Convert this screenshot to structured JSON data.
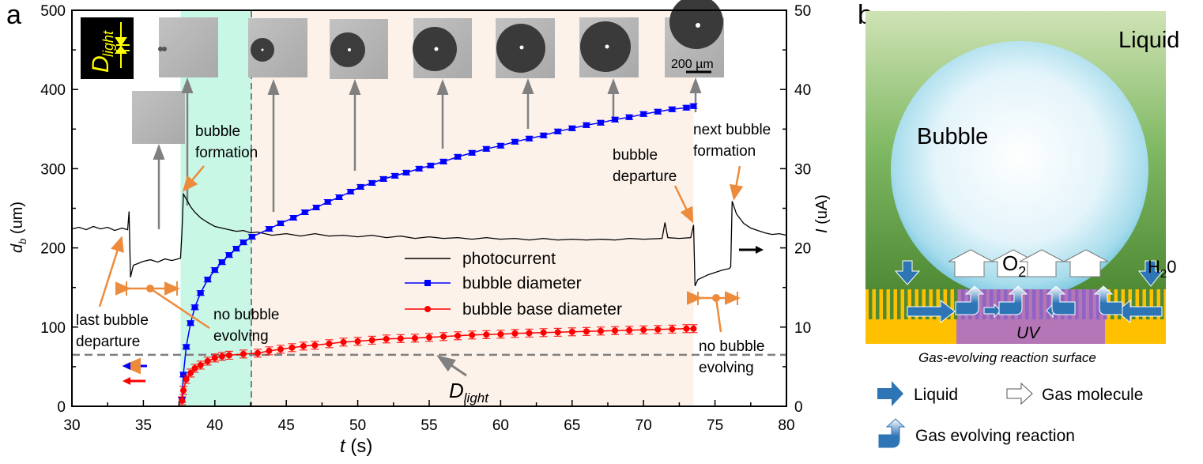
{
  "panel_labels": {
    "a": "a",
    "b": "b"
  },
  "chart_data": {
    "type": "line",
    "xlabel_var": "t",
    "xlabel_unit": " (s)",
    "ylabel_left_var": "d",
    "ylabel_left_sub": "b",
    "ylabel_left_unit": " (um)",
    "ylabel_right_var": "I",
    "ylabel_right_unit": " (uA)",
    "xlim": [
      30,
      80
    ],
    "ylim_left": [
      0,
      500
    ],
    "ylim_right": [
      0,
      50
    ],
    "x_ticks": [
      "30",
      "35",
      "40",
      "45",
      "50",
      "55",
      "60",
      "65",
      "70",
      "75",
      "80"
    ],
    "y_ticks_left": [
      "0",
      "100",
      "200",
      "300",
      "400",
      "500"
    ],
    "y_ticks_right": [
      "0",
      "10",
      "20",
      "30",
      "40",
      "50"
    ],
    "d_light_um": 65,
    "d_light_label": "D",
    "d_light_sub": "light",
    "regions": [
      {
        "name": "no-bubble-evolving-shade",
        "from": 37.6,
        "to": 42.6,
        "color": "#c8f7e6"
      },
      {
        "name": "bubble-growth-shade",
        "from": 42.6,
        "to": 73.5,
        "color": "#fdf2ea"
      }
    ],
    "series": [
      {
        "name": "photocurrent",
        "axis": "right",
        "color": "#000000",
        "marker": "none",
        "x": [
          30,
          30.5,
          31,
          31.5,
          32,
          32.5,
          33,
          33.5,
          33.9,
          34,
          34.1,
          34.3,
          35,
          35.5,
          36,
          36.5,
          37,
          37.6,
          37.7,
          37.8,
          38,
          38.3,
          38.6,
          39,
          39.5,
          40,
          40.5,
          41,
          41.5,
          42,
          42.5,
          43,
          44,
          45,
          46,
          47,
          48,
          49,
          50,
          51,
          52,
          53,
          54,
          55,
          56,
          57,
          58,
          59,
          60,
          61,
          62,
          63,
          64,
          65,
          66,
          67,
          68,
          69,
          70,
          71.3,
          71.5,
          71.7,
          72.5,
          73.3,
          73.5,
          73.6,
          73.8,
          74.5,
          75,
          75.5,
          76,
          76.1,
          76.2,
          76.5,
          77,
          77.5,
          78,
          78.5,
          79,
          79.5,
          80
        ],
        "y": [
          22.4,
          22.6,
          22.3,
          22.7,
          22.4,
          22.6,
          22.2,
          22.5,
          22.3,
          24.6,
          16.3,
          17.8,
          18.3,
          18.5,
          18.2,
          18.6,
          18.4,
          18.7,
          22,
          26.8,
          26.2,
          25.2,
          24.5,
          23.8,
          23.2,
          22.7,
          22.5,
          22.3,
          22.1,
          22.2,
          21.9,
          22,
          21.6,
          21.8,
          21.5,
          21.8,
          21.5,
          21.6,
          21.4,
          21.6,
          21.3,
          21.5,
          21.2,
          21.4,
          21.2,
          21.3,
          21.1,
          21.3,
          21.1,
          21.2,
          21.0,
          21.2,
          21.0,
          21.1,
          21.0,
          21.1,
          21.0,
          21.2,
          21.1,
          21.2,
          23.2,
          21.3,
          21.2,
          21.3,
          22.9,
          15.2,
          16.0,
          16.6,
          16.9,
          17.2,
          17.4,
          17.6,
          25.9,
          24.3,
          23.1,
          22.5,
          22.2,
          21.9,
          21.7,
          21.8,
          21.6
        ]
      },
      {
        "name": "bubble diameter",
        "axis": "left",
        "color": "#0000ff",
        "marker": "square",
        "x": [
          37.7,
          37.8,
          38,
          38.3,
          38.6,
          39,
          39.5,
          40,
          40.5,
          41,
          41.5,
          42,
          42.6,
          43.8,
          44.6,
          45.5,
          46.3,
          47.1,
          47.9,
          48.7,
          49.5,
          50.2,
          51,
          51.8,
          52.6,
          53.4,
          54.3,
          55.1,
          56,
          57,
          58,
          59,
          60,
          61,
          62,
          63,
          64,
          65,
          66,
          67,
          68,
          69,
          70,
          71,
          72,
          73,
          73.5
        ],
        "y": [
          8,
          40,
          75,
          105,
          125,
          143,
          160,
          172,
          182,
          191,
          199,
          207,
          214,
          224,
          231,
          238,
          245,
          251,
          258,
          264,
          271,
          277,
          282,
          287,
          291,
          295,
          300,
          304,
          309,
          315,
          320,
          325,
          329,
          334,
          338,
          342,
          347,
          351,
          355,
          358,
          362,
          365,
          369,
          372,
          375,
          377,
          379
        ]
      },
      {
        "name": "bubble base diameter",
        "axis": "left",
        "color": "#ff0000",
        "marker": "circle",
        "x": [
          37.7,
          37.8,
          38,
          38.3,
          38.6,
          39,
          39.5,
          40,
          40.5,
          41,
          42,
          43,
          43.8,
          44.6,
          45.4,
          46.2,
          47,
          48,
          49,
          50,
          51,
          52,
          53,
          54,
          55,
          56,
          57,
          58,
          59,
          60,
          61,
          62,
          63,
          64,
          65,
          66,
          67,
          68,
          69,
          70,
          71,
          72,
          73,
          73.5
        ],
        "y": [
          7,
          20,
          34,
          42,
          48,
          52,
          57,
          61,
          63,
          64.5,
          66,
          67,
          70,
          72,
          74,
          76,
          77,
          79,
          81,
          82,
          83.5,
          85,
          85.5,
          86,
          87,
          88,
          89,
          90,
          90.5,
          91,
          92,
          92.5,
          93,
          93.5,
          94,
          94.5,
          95,
          95.5,
          96,
          96.5,
          97,
          97.5,
          98,
          98
        ]
      }
    ],
    "legend": [
      "photocurrent",
      "bubble diameter",
      "bubble base diameter"
    ],
    "legend_placement": "center-right",
    "annotations": {
      "bubble_formation": [
        "bubble",
        "formation"
      ],
      "last_bubble_departure": [
        "last bubble",
        "departure"
      ],
      "no_bubble_evolving_left": [
        "no bubble",
        "evolving"
      ],
      "bubble_departure": [
        "bubble",
        "departure"
      ],
      "next_bubble_formation": [
        "next bubble",
        "formation"
      ],
      "no_bubble_evolving_right": [
        "no bubble",
        "evolving"
      ],
      "scale_bar": "200 µm"
    },
    "accent_colors": {
      "annotation": "#ed8b3c",
      "arrow_gray": "#808080"
    }
  },
  "schematic": {
    "liquid": "Liquid",
    "bubble": "Bubble",
    "o2": "O",
    "o2_sub": "2",
    "h2o": "H",
    "h2o_sub": "2",
    "h2o_end": "0",
    "uv": "UV",
    "caption": "Gas-evolving reaction surface",
    "legend": {
      "liquid": "Liquid",
      "gas_molecule": "Gas molecule",
      "reaction": "Gas evolving reaction"
    },
    "colors": {
      "liquid_arrow": "#2e75b6",
      "surface_yellow": "#ffc000",
      "uv_purple": "#b476b6",
      "liquid_green": "#6aa84f"
    }
  }
}
